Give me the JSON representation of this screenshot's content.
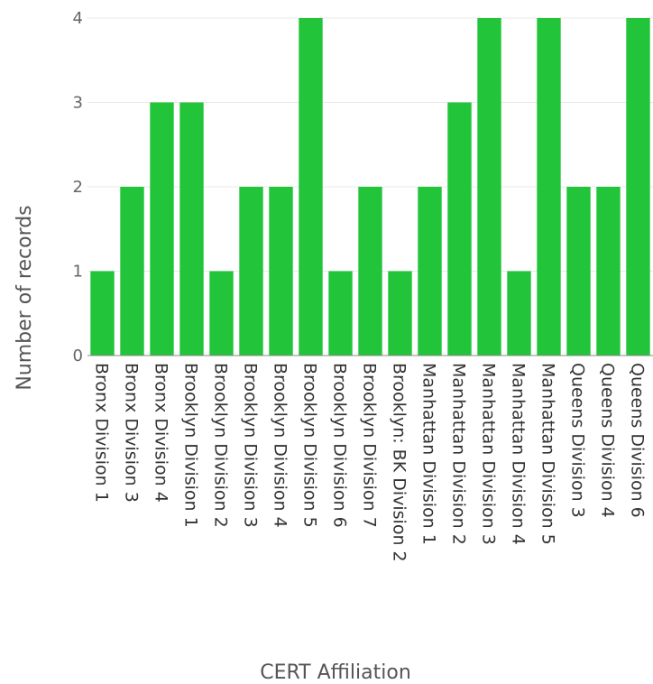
{
  "chart_data": {
    "type": "bar",
    "categories": [
      "Bronx Division 1",
      "Bronx Division 3",
      "Bronx Division 4",
      "Brooklyn Division 1",
      "Brooklyn Division 2",
      "Brooklyn Division 3",
      "Brooklyn Division 4",
      "Brooklyn Division 5",
      "Brooklyn Division 6",
      "Brooklyn Division 7",
      "Brooklyn: BK Division 2",
      "Manhattan Division 1",
      "Manhattan Division 2",
      "Manhattan Division 3",
      "Manhattan Division 4",
      "Manhattan Division 5",
      "Queens Division 3",
      "Queens Division 4",
      "Queens Division 6"
    ],
    "values": [
      1,
      2,
      3,
      3,
      1,
      2,
      2,
      4,
      1,
      2,
      1,
      2,
      3,
      4,
      1,
      4,
      2,
      2,
      4
    ],
    "xlabel": "CERT Affiliation",
    "ylabel": "Number of records",
    "ylim": [
      0,
      4
    ],
    "yticks": [
      0,
      1,
      2,
      3,
      4
    ],
    "grid": true,
    "bar_color": "#22c43a",
    "grid_color": "#e8e8e8",
    "axis_color": "#888888"
  }
}
